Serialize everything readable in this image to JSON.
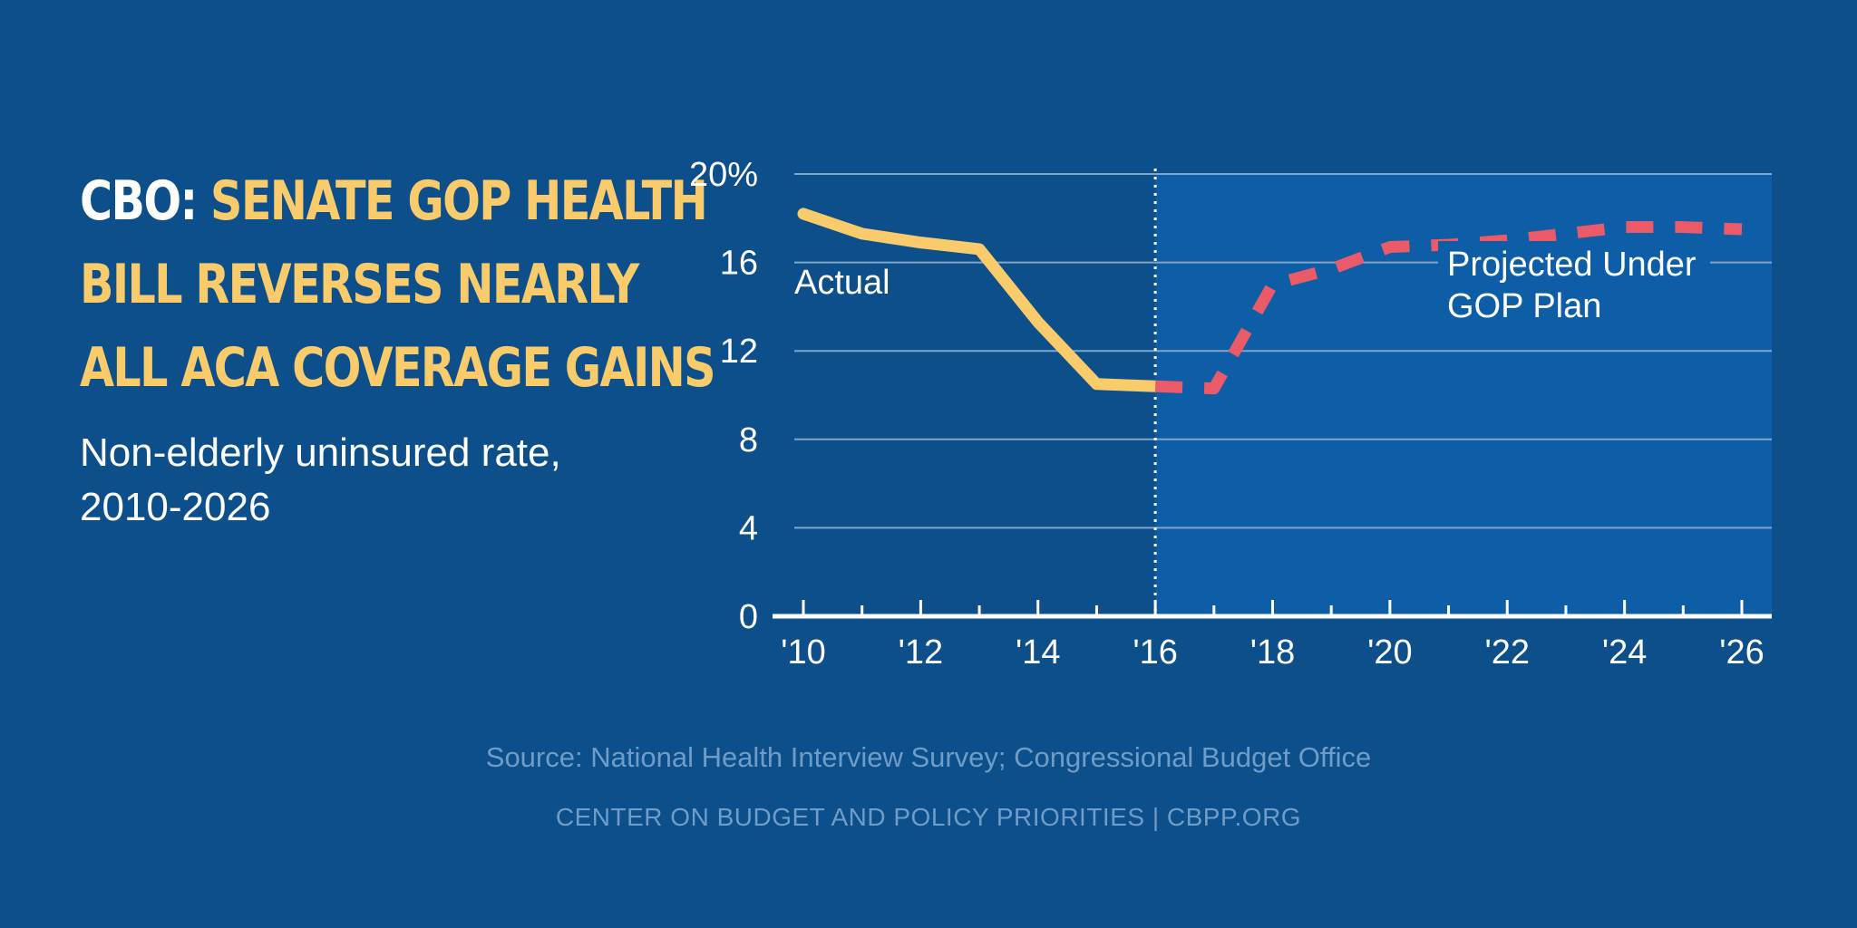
{
  "headline": {
    "lead": "CBO: ",
    "rest": "SENATE GOP HEALTH BILL REVERSES NEARLY ALL ACA COVERAGE GAINS"
  },
  "subtitle": "Non-elderly uninsured rate, 2010-2026",
  "source": "Source: National Health Interview Survey; Congressional Budget Office",
  "org": "CENTER ON BUDGET AND POLICY PRIORITIES | CBPP.ORG",
  "colors": {
    "background": "#0c4f8a",
    "projection_panel": "#0d5ea6",
    "actual": "#f9cb6a",
    "projected": "#ea5a68",
    "headline_accent": "#f9cb6a"
  },
  "chart_data": {
    "type": "line",
    "x": [
      2010,
      2011,
      2012,
      2013,
      2014,
      2015,
      2016,
      2017,
      2018,
      2019,
      2020,
      2021,
      2022,
      2023,
      2024,
      2025,
      2026
    ],
    "xlim": [
      2010,
      2026
    ],
    "ylim": [
      0,
      20
    ],
    "yticks": [
      0,
      4,
      8,
      12,
      16,
      20
    ],
    "ytick_labels": [
      "0",
      "4",
      "8",
      "12",
      "16",
      "20%"
    ],
    "xticks": [
      2010,
      2012,
      2014,
      2016,
      2018,
      2020,
      2022,
      2024,
      2026
    ],
    "xtick_labels": [
      "'10",
      "'12",
      "'14",
      "'16",
      "'18",
      "'20",
      "'22",
      "'24",
      "'26"
    ],
    "grid": true,
    "divider_x": 2016,
    "series": [
      {
        "name": "Actual",
        "style": "solid",
        "x": [
          2010,
          2011,
          2012,
          2013,
          2014,
          2015,
          2016
        ],
        "y": [
          18.2,
          17.3,
          16.9,
          16.6,
          13.3,
          10.5,
          10.4
        ]
      },
      {
        "name": "Projected Under GOP Plan",
        "style": "dashed",
        "x": [
          2016,
          2017,
          2018,
          2019,
          2020,
          2021,
          2022,
          2023,
          2024,
          2025,
          2026
        ],
        "y": [
          10.4,
          10.3,
          15.0,
          15.7,
          16.7,
          16.8,
          17.0,
          17.3,
          17.6,
          17.6,
          17.5
        ]
      }
    ],
    "annotations": [
      {
        "text": "Actual",
        "series": 0
      },
      {
        "text": "Projected Under",
        "series": 1
      },
      {
        "text": "GOP Plan",
        "series": 1
      }
    ]
  }
}
